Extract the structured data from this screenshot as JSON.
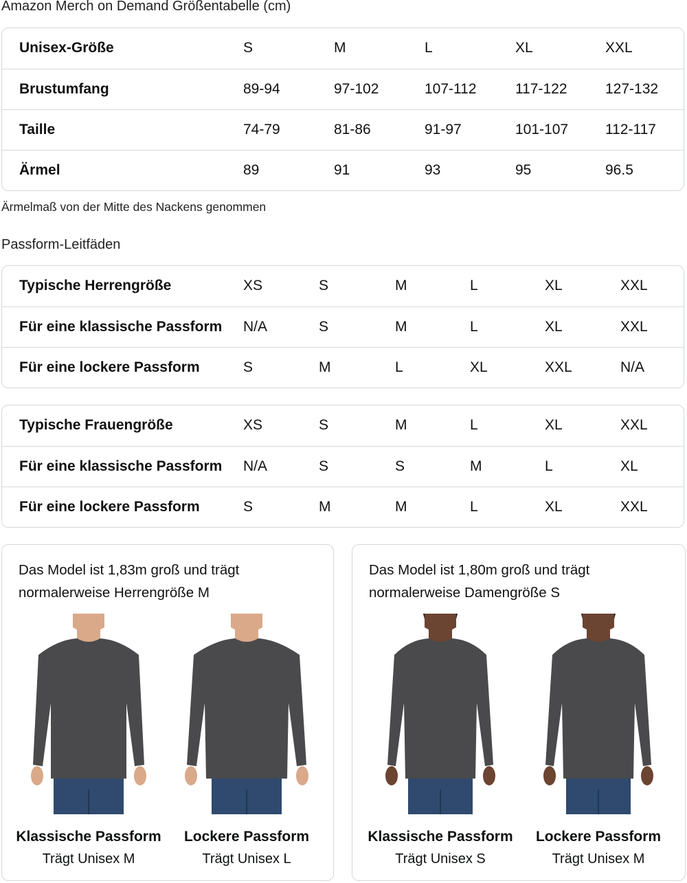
{
  "size_chart": {
    "title": "Amazon Merch on Demand Größentabelle (cm)",
    "rows": [
      {
        "label": "Unisex-Größe",
        "values": [
          "S",
          "M",
          "L",
          "XL",
          "XXL"
        ]
      },
      {
        "label": "Brustumfang",
        "values": [
          "89-94",
          "97-102",
          "107-112",
          "117-122",
          "127-132"
        ]
      },
      {
        "label": "Taille",
        "values": [
          "74-79",
          "81-86",
          "91-97",
          "101-107",
          "112-117"
        ]
      },
      {
        "label": "Ärmel",
        "values": [
          "89",
          "91",
          "93",
          "95",
          "96.5"
        ]
      }
    ],
    "note": "Ärmelmaß von der Mitte des Nackens genommen"
  },
  "fit_guides": {
    "title": "Passform-Leitfäden",
    "men": [
      {
        "label": "Typische Herrengröße",
        "values": [
          "XS",
          "S",
          "M",
          "L",
          "XL",
          "XXL"
        ]
      },
      {
        "label": "Für eine klassische Passform",
        "values": [
          "N/A",
          "S",
          "M",
          "L",
          "XL",
          "XXL"
        ]
      },
      {
        "label": "Für eine lockere Passform",
        "values": [
          "S",
          "M",
          "L",
          "XL",
          "XXL",
          "N/A"
        ]
      }
    ],
    "women": [
      {
        "label": "Typische Frauengröße",
        "values": [
          "XS",
          "S",
          "M",
          "L",
          "XL",
          "XXL"
        ]
      },
      {
        "label": "Für eine klassische Passform",
        "values": [
          "N/A",
          "S",
          "S",
          "M",
          "L",
          "XL"
        ]
      },
      {
        "label": "Für eine lockere Passform",
        "values": [
          "S",
          "M",
          "M",
          "L",
          "XL",
          "XXL"
        ]
      }
    ]
  },
  "models": [
    {
      "text": "Das Model ist 1,83m groß und trägt normalerweise Herrengröße M",
      "figures": [
        {
          "fit": "Klassische Passform",
          "wears": "Trägt Unisex M",
          "skin": "#d9a98a"
        },
        {
          "fit": "Lockere Passform",
          "wears": "Trägt Unisex L",
          "skin": "#d9a98a"
        }
      ]
    },
    {
      "text": "Das Model ist 1,80m groß und trägt normalerweise Damengröße S",
      "figures": [
        {
          "fit": "Klassische Passform",
          "wears": "Trägt Unisex S",
          "skin": "#6b4432"
        },
        {
          "fit": "Lockere Passform",
          "wears": "Trägt Unisex M",
          "skin": "#6b4432"
        }
      ]
    }
  ],
  "colors": {
    "sweater": "#4a4a4c",
    "jeans": "#2f4a6e",
    "border": "#d5d9d9"
  }
}
